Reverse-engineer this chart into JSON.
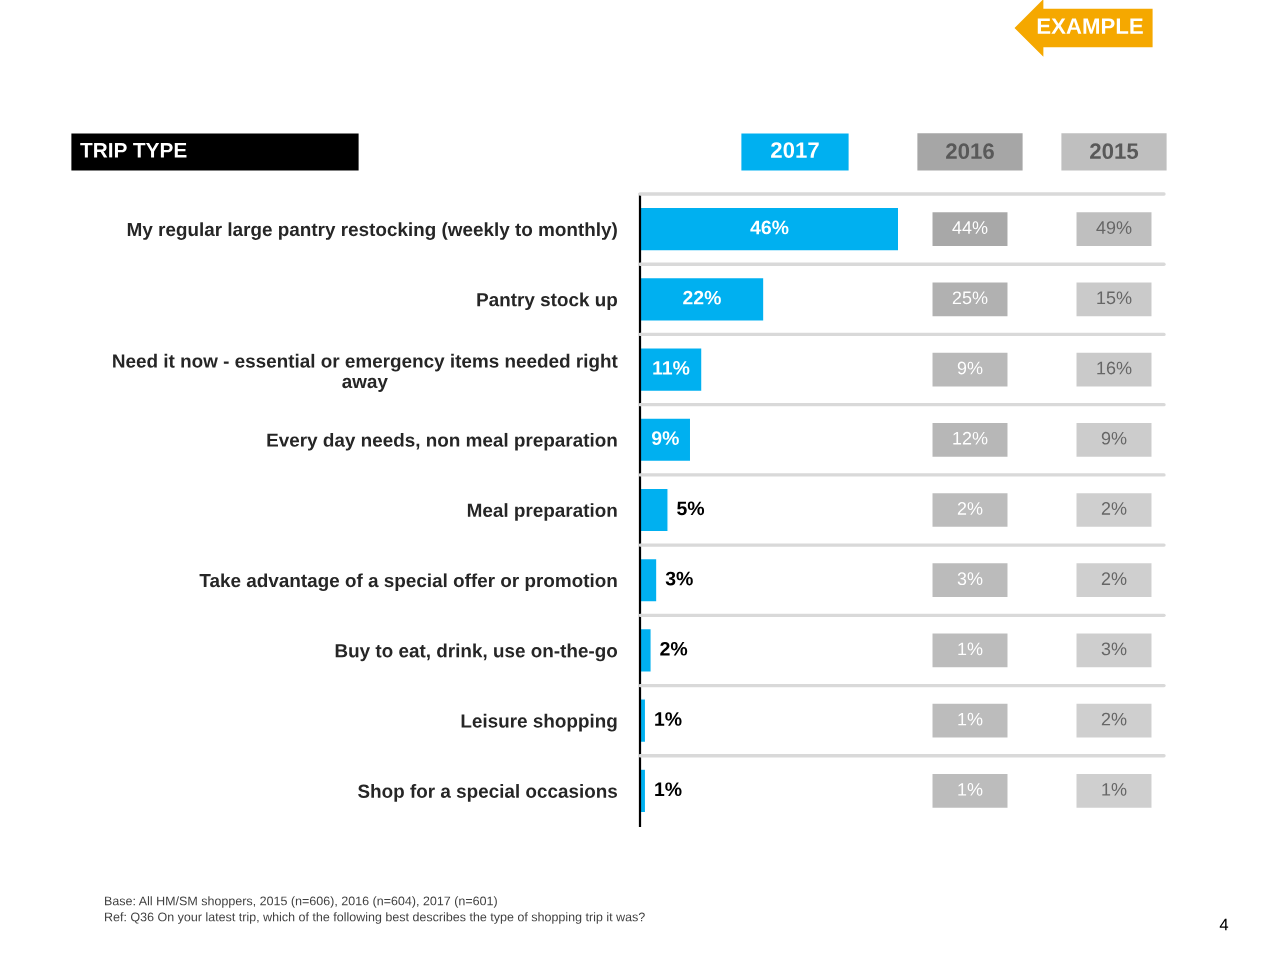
{
  "chart_data": [
    {
      "type": "bar",
      "orientation": "horizontal",
      "title": "TRIP TYPE",
      "legend": "top",
      "categories": [
        "My regular large pantry restocking (weekly to monthly)",
        "Pantry stock up",
        "Need it now - essential or emergency items needed right\naway",
        "Every day needs, non meal preparation",
        "Meal preparation",
        "Take advantage of a special offer or promotion",
        "Buy to eat, drink, use on-the-go",
        "Leisure shopping",
        "Shop for a special occasions"
      ],
      "series": [
        {
          "name": "2017",
          "type": "bar",
          "color": "#00b0f0",
          "values": [
            46,
            22,
            11,
            9,
            5,
            3,
            2,
            1,
            1
          ],
          "value_labels": [
            "46%",
            "22%",
            "11%",
            "9%",
            "5%",
            "3%",
            "2%",
            "1%",
            "1%"
          ]
        }
      ],
      "annotations": [
        "EXAMPLE",
        "Base: All HM/SM shoppers, 2015 (n=606), 2016 (n=604), 2017 (n=601)",
        "Ref: Q36 On your latest trip, which of the following best describes the type of shopping trip it was?",
        "4"
      ]
    },
    {
      "type": "heatmap",
      "tick_labels": "x",
      "categories": [
        "2016",
        "2015"
      ],
      "colors": [
        "#a6a6a6",
        "#bfbfbf"
      ],
      "y_categories": [
        null,
        null,
        null,
        null,
        null,
        null,
        null,
        null,
        null
      ],
      "cells": [
        [
          44,
          49
        ],
        [
          25,
          15
        ],
        [
          9,
          16
        ],
        [
          12,
          9
        ],
        [
          2,
          2
        ],
        [
          3,
          2
        ],
        [
          1,
          3
        ],
        [
          1,
          2
        ],
        [
          1,
          1
        ]
      ],
      "cell_labels": [
        [
          "44%",
          "49%"
        ],
        [
          "25%",
          "15%"
        ],
        [
          "9%",
          "16%"
        ],
        [
          "12%",
          "9%"
        ],
        [
          "2%",
          "2%"
        ],
        [
          "3%",
          "2%"
        ],
        [
          "1%",
          "3%"
        ],
        [
          "1%",
          "2%"
        ],
        [
          "1%",
          "1%"
        ]
      ]
    }
  ]
}
